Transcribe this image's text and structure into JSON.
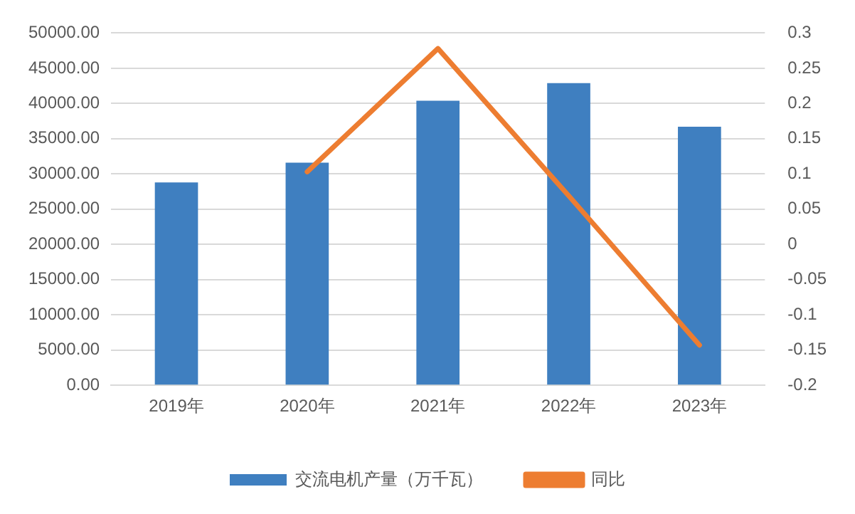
{
  "chart_data": {
    "type": "bar",
    "categories": [
      "2019年",
      "2020年",
      "2021年",
      "2022年",
      "2023年"
    ],
    "series": [
      {
        "name": "交流电机产量（万千瓦）",
        "color": "#3f7fc0",
        "values": [
          28800,
          31600,
          40400,
          42900,
          36700
        ]
      },
      {
        "name": "同比",
        "type": "line",
        "axis": "y2",
        "color": "#ed7d31",
        "values": [
          null,
          0.103,
          0.278,
          0.069,
          -0.143
        ]
      }
    ],
    "ylim": [
      0,
      50000
    ],
    "yticks": [
      {
        "value": 0,
        "label": "0.00"
      },
      {
        "value": 5000,
        "label": "5000.00"
      },
      {
        "value": 10000,
        "label": "10000.00"
      },
      {
        "value": 15000,
        "label": "15000.00"
      },
      {
        "value": 20000,
        "label": "20000.00"
      },
      {
        "value": 25000,
        "label": "25000.00"
      },
      {
        "value": 30000,
        "label": "30000.00"
      },
      {
        "value": 35000,
        "label": "35000.00"
      },
      {
        "value": 40000,
        "label": "40000.00"
      },
      {
        "value": 45000,
        "label": "45000.00"
      },
      {
        "value": 50000,
        "label": "50000.00"
      }
    ],
    "y2lim": [
      -0.2,
      0.3
    ],
    "y2ticks": [
      -0.2,
      -0.15,
      -0.1,
      -0.05,
      0,
      0.05,
      0.1,
      0.15,
      0.2,
      0.25,
      0.3
    ],
    "grid": "y",
    "legend": "bottom",
    "marker": "none"
  }
}
